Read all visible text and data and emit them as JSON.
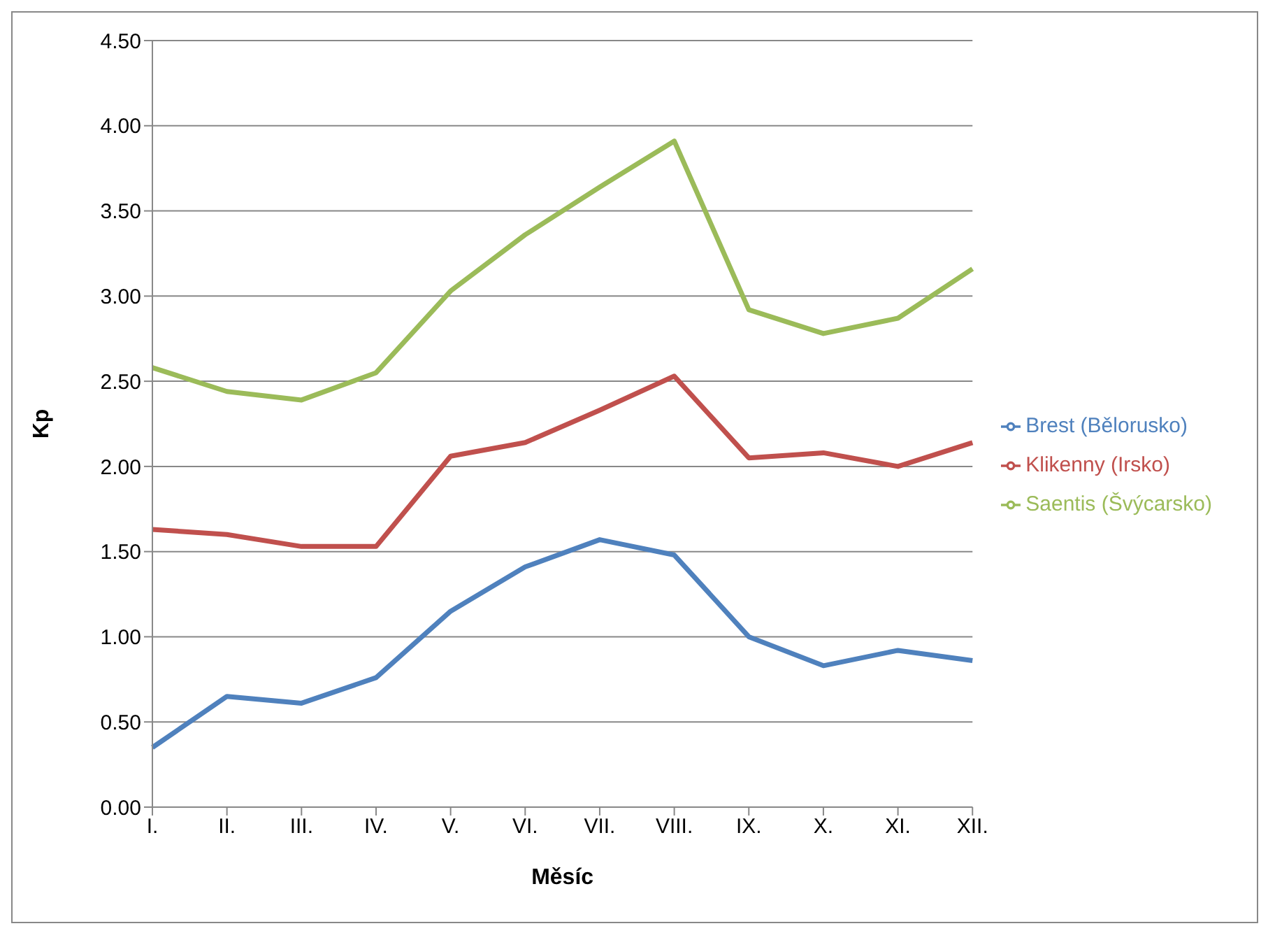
{
  "chart_data": {
    "type": "line",
    "xlabel": "Měsíc",
    "ylabel": "Kp",
    "categories": [
      "I.",
      "II.",
      "III.",
      "IV.",
      "V.",
      "VI.",
      "VII.",
      "VIII.",
      "IX.",
      "X.",
      "XI.",
      "XII."
    ],
    "series": [
      {
        "name": "Saentis (Švýcarsko)",
        "color": "#9bbb59",
        "values": [
          2.58,
          2.44,
          2.39,
          2.55,
          3.03,
          3.36,
          3.64,
          3.91,
          2.92,
          2.78,
          2.87,
          3.16
        ]
      },
      {
        "name": "Klikenny (Irsko)",
        "color": "#c0504d",
        "values": [
          1.63,
          1.6,
          1.53,
          1.53,
          2.06,
          2.14,
          2.33,
          2.53,
          2.05,
          2.08,
          2.0,
          2.14
        ]
      },
      {
        "name": "Brest (Bělorusko)",
        "color": "#4f81bd",
        "values": [
          0.35,
          0.65,
          0.61,
          0.76,
          1.15,
          1.41,
          1.57,
          1.48,
          1.0,
          0.83,
          0.92,
          0.86
        ]
      }
    ],
    "ylim": [
      0,
      4.5
    ],
    "yticks": [
      {
        "value": 0,
        "label": "0.00"
      },
      {
        "value": 0.5,
        "label": "0.50"
      },
      {
        "value": 1,
        "label": "1.00"
      },
      {
        "value": 1.5,
        "label": "1.50"
      },
      {
        "value": 2,
        "label": "2.00"
      },
      {
        "value": 2.5,
        "label": "2.50"
      },
      {
        "value": 3,
        "label": "3.00"
      },
      {
        "value": 3.5,
        "label": "3.50"
      },
      {
        "value": 4,
        "label": "4.00"
      },
      {
        "value": 4.5,
        "label": "4.50"
      }
    ],
    "grid": "y",
    "legend": "right",
    "marker": "none",
    "line_style": "solid"
  }
}
